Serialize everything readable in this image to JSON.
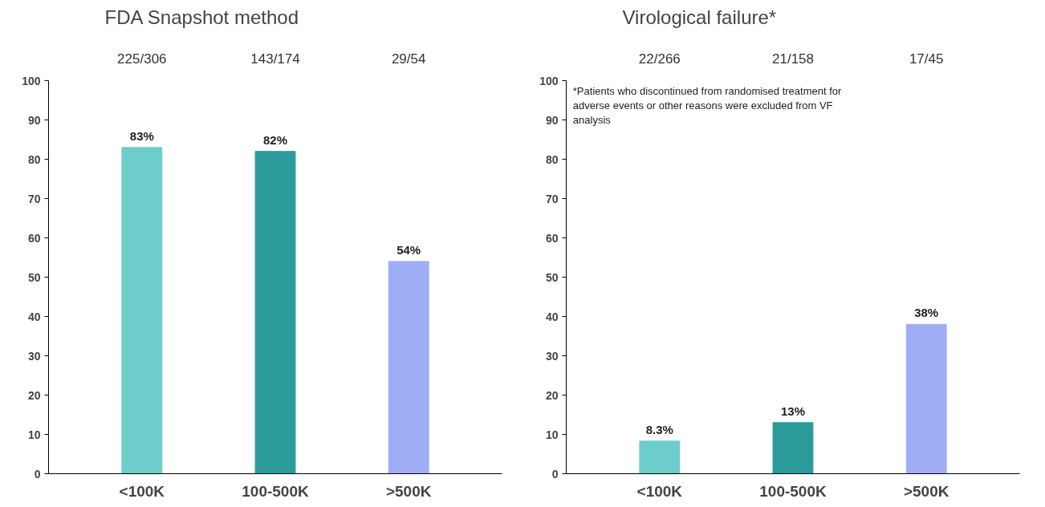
{
  "chart_data": [
    {
      "type": "bar",
      "title": "FDA Snapshot method",
      "categories": [
        "<100K",
        "100-500K",
        ">500K"
      ],
      "values": [
        83,
        82,
        54
      ],
      "colors": [
        "#6dcdca",
        "#2a9b9a",
        "#9fadf7"
      ],
      "value_labels": [
        "83%",
        "82%",
        "54%"
      ],
      "ylim": [
        0,
        100
      ],
      "yticks": [
        0,
        10,
        20,
        30,
        40,
        50,
        60,
        70,
        80,
        90,
        100
      ],
      "grid": false,
      "annotations": [
        "225/306",
        "143/174",
        "29/54"
      ]
    },
    {
      "type": "bar",
      "title": "Virological failure*",
      "categories": [
        "<100K",
        "100-500K",
        ">500K"
      ],
      "values": [
        8.3,
        13,
        38
      ],
      "colors": [
        "#6dcdca",
        "#2a9b9a",
        "#9fadf7"
      ],
      "value_labels": [
        "8.3%",
        "13%",
        "38%"
      ],
      "ylim": [
        0,
        100
      ],
      "yticks": [
        0,
        10,
        20,
        30,
        40,
        50,
        60,
        70,
        80,
        90,
        100
      ],
      "grid": false,
      "annotations": [
        "22/266",
        "21/158",
        "17/45",
        "*Patients who discontinued from randomised treatment for adverse events or other reasons were excluded from VF analysis"
      ]
    }
  ]
}
